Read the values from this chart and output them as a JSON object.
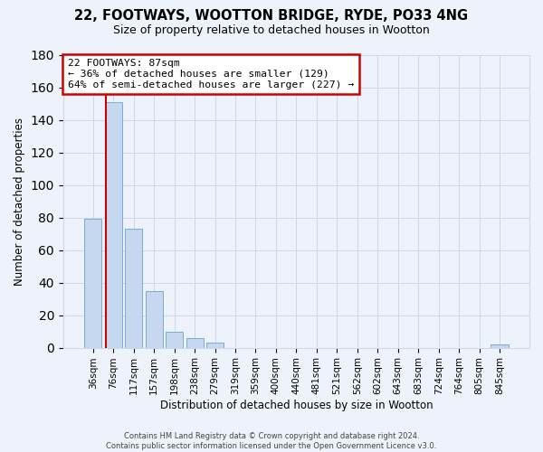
{
  "title": "22, FOOTWAYS, WOOTTON BRIDGE, RYDE, PO33 4NG",
  "subtitle": "Size of property relative to detached houses in Wootton",
  "xlabel": "Distribution of detached houses by size in Wootton",
  "ylabel": "Number of detached properties",
  "footer_line1": "Contains HM Land Registry data © Crown copyright and database right 2024.",
  "footer_line2": "Contains public sector information licensed under the Open Government Licence v3.0.",
  "bar_labels": [
    "36sqm",
    "76sqm",
    "117sqm",
    "157sqm",
    "198sqm",
    "238sqm",
    "279sqm",
    "319sqm",
    "359sqm",
    "400sqm",
    "440sqm",
    "481sqm",
    "521sqm",
    "562sqm",
    "602sqm",
    "643sqm",
    "683sqm",
    "724sqm",
    "764sqm",
    "805sqm",
    "845sqm"
  ],
  "bar_values": [
    79,
    151,
    73,
    35,
    10,
    6,
    3,
    0,
    0,
    0,
    0,
    0,
    0,
    0,
    0,
    0,
    0,
    0,
    0,
    0,
    2
  ],
  "bar_color": "#c5d8f0",
  "bar_edge_color": "#7aabda",
  "grid_color": "#d0d8e8",
  "background_color": "#eef2fb",
  "annotation_line1": "22 FOOTWAYS: 87sqm",
  "annotation_line2": "← 36% of detached houses are smaller (129)",
  "annotation_line3": "64% of semi-detached houses are larger (227) →",
  "annotation_box_color": "white",
  "annotation_box_edge_color": "#cc0000",
  "vertical_line_color": "#cc0000",
  "ylim": [
    0,
    180
  ],
  "yticks": [
    0,
    20,
    40,
    60,
    80,
    100,
    120,
    140,
    160,
    180
  ]
}
